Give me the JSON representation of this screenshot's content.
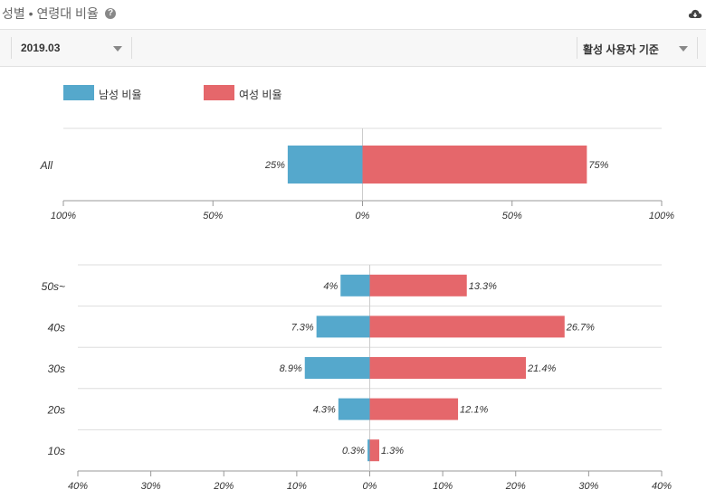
{
  "header": {
    "title": "성별 • 연령대 비율",
    "help_glyph": "?",
    "help_icon": "question-circle-icon",
    "download_icon": "cloud-download-icon"
  },
  "toolbar": {
    "date_value": "2019.03",
    "basis_value": "활성 사용자 기준",
    "caret_icon": "caret-down-icon"
  },
  "colors": {
    "male": "#55a8cc",
    "female": "#e5676b"
  },
  "chart_data": [
    {
      "type": "bar",
      "orientation": "horizontal-diverging",
      "categories": [
        "All"
      ],
      "series": [
        {
          "name": "남성 비율",
          "values": [
            25
          ],
          "labels": [
            "25%"
          ]
        },
        {
          "name": "여성 비율",
          "values": [
            75
          ],
          "labels": [
            "75%"
          ]
        }
      ],
      "xlim": [
        -100,
        100
      ],
      "ticks": [
        "100%",
        "50%",
        "0%",
        "50%",
        "100%"
      ],
      "legend": "top-left"
    },
    {
      "type": "bar",
      "orientation": "horizontal-diverging",
      "categories": [
        "50s~",
        "40s",
        "30s",
        "20s",
        "10s"
      ],
      "series": [
        {
          "name": "남성 비율",
          "values": [
            4,
            7.3,
            8.9,
            4.3,
            0.3
          ],
          "labels": [
            "4%",
            "7.3%",
            "8.9%",
            "4.3%",
            "0.3%"
          ]
        },
        {
          "name": "여성 비율",
          "values": [
            13.3,
            26.7,
            21.4,
            12.1,
            1.3
          ],
          "labels": [
            "13.3%",
            "26.7%",
            "21.4%",
            "12.1%",
            "1.3%"
          ]
        }
      ],
      "xlim": [
        -40,
        40
      ],
      "ticks": [
        "40%",
        "30%",
        "20%",
        "10%",
        "0%",
        "10%",
        "20%",
        "30%",
        "40%"
      ]
    }
  ]
}
